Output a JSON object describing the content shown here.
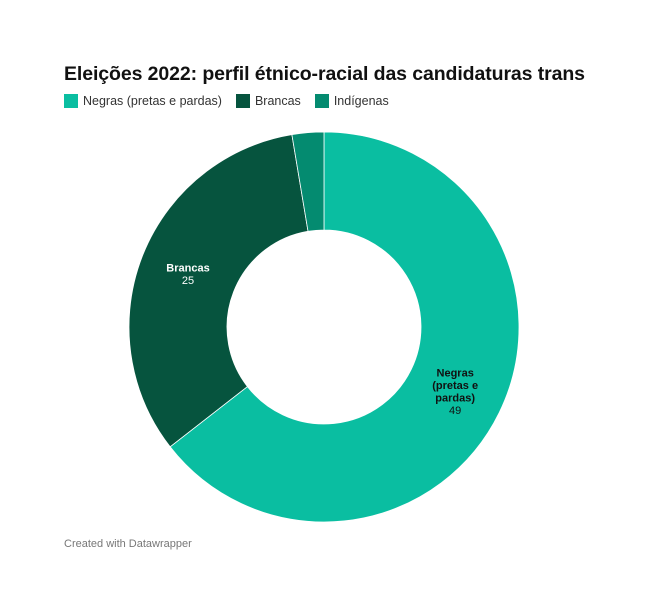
{
  "chart_data": {
    "type": "pie",
    "title": "Eleições 2022: perfil étnico-racial das candidaturas trans",
    "donut": true,
    "legend_position": "top-left",
    "categories": [
      "Negras (pretas e pardas)",
      "Brancas",
      "Indígenas"
    ],
    "values": [
      49,
      25,
      2
    ],
    "colors": [
      "#0abea1",
      "#06543e",
      "#048b70"
    ],
    "slice_labels": [
      {
        "lines": [
          "Negras",
          "(pretas e",
          "pardas)"
        ],
        "value": "49"
      },
      {
        "lines": [
          "Brancas"
        ],
        "value": "25"
      },
      {
        "lines": [],
        "value": ""
      }
    ]
  },
  "footer": "Created with Datawrapper"
}
